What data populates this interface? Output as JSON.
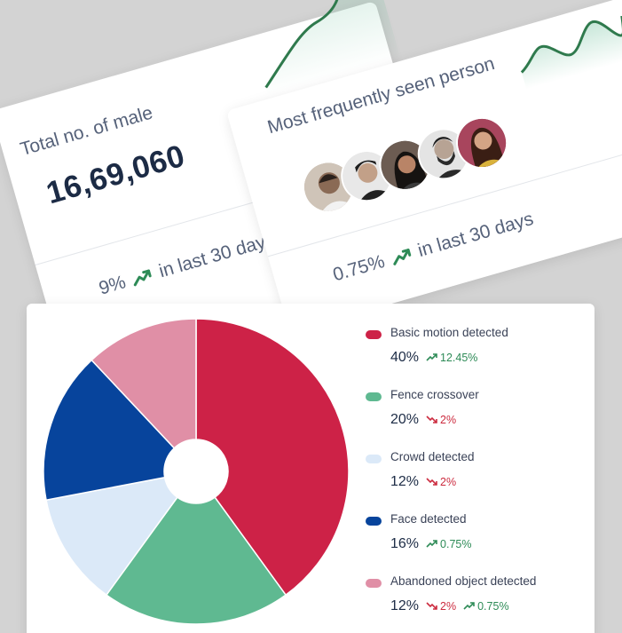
{
  "male_card": {
    "title": "Total no. of male",
    "value": "16,69,060",
    "change": "9%",
    "period": "in last 30 days",
    "trend_color": "#2e8b57"
  },
  "person_card": {
    "title": "Most frequently seen person",
    "change": "0.75%",
    "period": "in last 30 days",
    "avatars": [
      "avatar-1",
      "avatar-2",
      "avatar-3",
      "avatar-4",
      "avatar-5"
    ]
  },
  "chart_data": {
    "type": "pie",
    "style": "donut",
    "categories": [
      "Basic motion detected",
      "Fence crossover",
      "Crowd detected",
      "Face detected",
      "Abandoned object detected"
    ],
    "values": [
      40,
      20,
      12,
      16,
      12
    ],
    "colors": [
      "#cd2247",
      "#5fb991",
      "#dbe9f8",
      "#07449c",
      "#e08fa6"
    ],
    "legend_position": "right"
  },
  "legend": [
    {
      "label": "Basic motion detected",
      "pct": "40%",
      "trends": [
        {
          "dir": "up",
          "text": "12.45%"
        }
      ]
    },
    {
      "label": "Fence crossover",
      "pct": "20%",
      "trends": [
        {
          "dir": "down",
          "text": "2%"
        }
      ]
    },
    {
      "label": "Crowd detected",
      "pct": "12%",
      "trends": [
        {
          "dir": "down",
          "text": "2%"
        }
      ]
    },
    {
      "label": "Face detected",
      "pct": "16%",
      "trends": [
        {
          "dir": "up",
          "text": "0.75%"
        }
      ]
    },
    {
      "label": "Abandoned object detected",
      "pct": "12%",
      "trends": [
        {
          "dir": "down",
          "text": "2%"
        },
        {
          "dir": "up",
          "text": "0.75%"
        }
      ]
    }
  ]
}
